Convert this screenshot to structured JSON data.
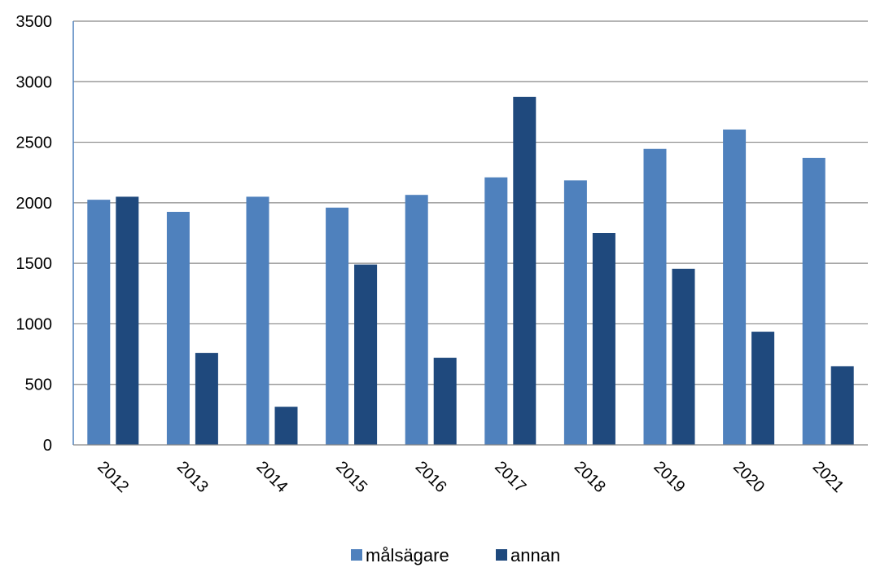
{
  "chart_data": {
    "type": "bar",
    "categories": [
      "2012",
      "2013",
      "2014",
      "2015",
      "2016",
      "2017",
      "2018",
      "2019",
      "2020",
      "2021"
    ],
    "series": [
      {
        "name": "målsägare",
        "color": "#4F81BD",
        "values": [
          2025,
          1925,
          2050,
          1960,
          2065,
          2210,
          2185,
          2445,
          2605,
          2370
        ]
      },
      {
        "name": "annan",
        "color": "#1F497D",
        "values": [
          2050,
          760,
          315,
          1490,
          720,
          2875,
          1750,
          1455,
          935,
          650
        ]
      }
    ],
    "ylim": [
      0,
      3500
    ],
    "yticks": [
      "0",
      "500",
      "1000",
      "1500",
      "2000",
      "2500",
      "3000",
      "3500"
    ],
    "grid": true,
    "legend_position": "bottom",
    "colors": {
      "gridline": "#888888",
      "axis": "#4F81BD"
    }
  }
}
